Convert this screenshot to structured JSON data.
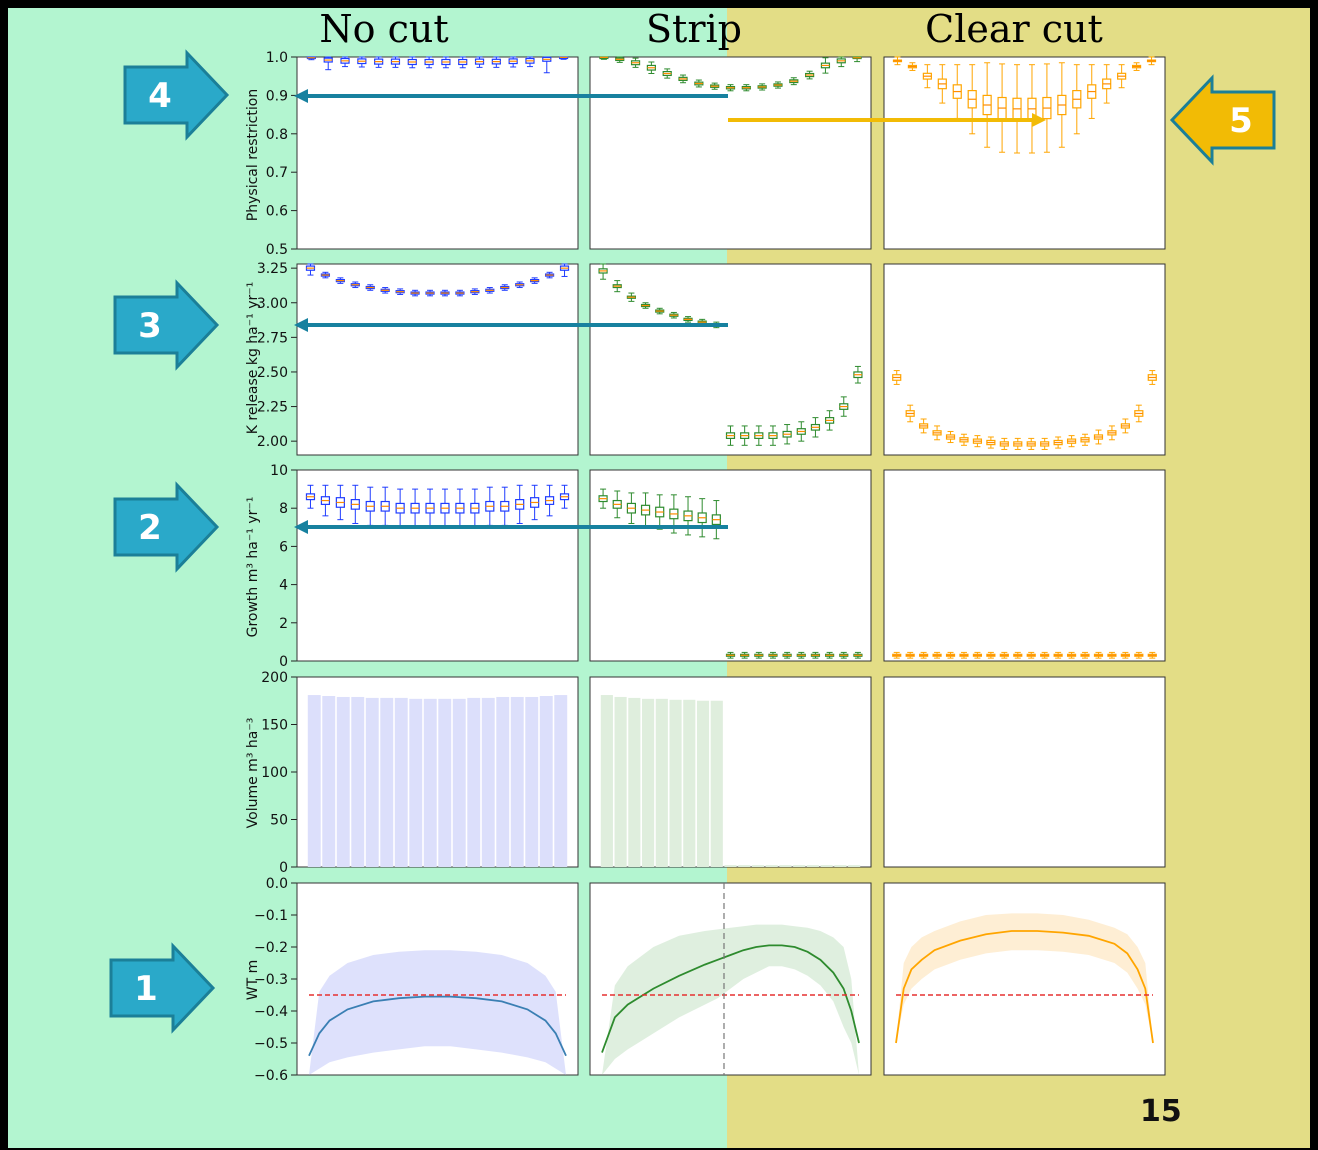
{
  "columns": [
    "No cut",
    "Strip",
    "Clear cut"
  ],
  "slide_number": "15",
  "arrows": [
    {
      "label": "1",
      "color": "#2aa9c9"
    },
    {
      "label": "2",
      "color": "#2aa9c9"
    },
    {
      "label": "3",
      "color": "#2aa9c9"
    },
    {
      "label": "4",
      "color": "#2aa9c9"
    },
    {
      "label": "5",
      "color": "#f2bb05"
    }
  ],
  "colors": {
    "nocut_bg": "#b3f5d0",
    "clearcut_bg": "#e3dd86",
    "nocut": "#1f3cff",
    "strip": "#2e8b2e",
    "clearcut": "#ffa500",
    "wt_line_nocut": "#3a7fb3",
    "threshold": "#e53030",
    "guide_arrow": "#17819f",
    "yellow_arrow": "#f2bb05",
    "median": "#ff8c00"
  },
  "chart_data": [
    {
      "type": "box",
      "row": "Physical restriction",
      "ylabel": "Physical restriction",
      "ylim": [
        0.5,
        1.0
      ],
      "yticks": [
        "0.5",
        "0.6",
        "0.7",
        "0.8",
        "0.9",
        "1.0"
      ],
      "series": [
        {
          "name": "No cut",
          "median": [
            0.998,
            0.992,
            0.99,
            0.989,
            0.988,
            0.988,
            0.987,
            0.987,
            0.987,
            0.987,
            0.988,
            0.988,
            0.989,
            0.99,
            0.994,
            0.999
          ],
          "iqr": [
            0.004,
            0.01,
            0.012,
            0.012,
            0.013,
            0.013,
            0.013,
            0.013,
            0.013,
            0.013,
            0.013,
            0.012,
            0.012,
            0.012,
            0.01,
            0.004
          ],
          "whisker": [
            0.005,
            0.025,
            0.015,
            0.015,
            0.015,
            0.015,
            0.015,
            0.015,
            0.015,
            0.015,
            0.015,
            0.015,
            0.015,
            0.015,
            0.035,
            0.005
          ]
        },
        {
          "name": "Strip",
          "median": [
            0.999,
            0.994,
            0.985,
            0.972,
            0.957,
            0.943,
            0.931,
            0.924,
            0.92,
            0.92,
            0.922,
            0.927,
            0.937,
            0.953,
            0.978,
            0.99,
            0.998
          ],
          "iqr": [
            0.004,
            0.006,
            0.01,
            0.012,
            0.01,
            0.008,
            0.007,
            0.006,
            0.006,
            0.006,
            0.006,
            0.006,
            0.007,
            0.008,
            0.012,
            0.01,
            0.004
          ],
          "whisker": [
            0.005,
            0.008,
            0.012,
            0.015,
            0.012,
            0.01,
            0.009,
            0.008,
            0.008,
            0.008,
            0.008,
            0.008,
            0.009,
            0.01,
            0.02,
            0.015,
            0.01
          ]
        },
        {
          "name": "Clear cut",
          "median": [
            0.99,
            0.975,
            0.95,
            0.93,
            0.91,
            0.89,
            0.875,
            0.867,
            0.865,
            0.865,
            0.867,
            0.875,
            0.89,
            0.91,
            0.93,
            0.95,
            0.975,
            0.99
          ],
          "iqr": [
            0.004,
            0.006,
            0.015,
            0.025,
            0.035,
            0.045,
            0.05,
            0.055,
            0.055,
            0.055,
            0.055,
            0.05,
            0.045,
            0.035,
            0.025,
            0.015,
            0.006,
            0.004
          ],
          "whisker": [
            0.01,
            0.01,
            0.03,
            0.05,
            0.07,
            0.09,
            0.11,
            0.115,
            0.115,
            0.115,
            0.115,
            0.11,
            0.09,
            0.07,
            0.05,
            0.03,
            0.01,
            0.01
          ]
        }
      ]
    },
    {
      "type": "box",
      "row": "K release",
      "ylabel": "K release kg ha⁻¹ yr⁻¹",
      "ylim": [
        1.9,
        3.28
      ],
      "yticks": [
        "2.00",
        "2.25",
        "2.50",
        "2.75",
        "3.00",
        "3.25"
      ],
      "series": [
        {
          "name": "No cut",
          "median": [
            3.25,
            3.2,
            3.16,
            3.13,
            3.11,
            3.09,
            3.08,
            3.07,
            3.07,
            3.07,
            3.07,
            3.08,
            3.09,
            3.11,
            3.13,
            3.16,
            3.2,
            3.25
          ],
          "iqr": [
            0.03,
            0.015,
            0.015,
            0.015,
            0.015,
            0.015,
            0.015,
            0.015,
            0.015,
            0.015,
            0.015,
            0.015,
            0.015,
            0.015,
            0.015,
            0.015,
            0.015,
            0.03
          ],
          "whisker": [
            0.05,
            0.02,
            0.02,
            0.02,
            0.02,
            0.02,
            0.02,
            0.02,
            0.02,
            0.02,
            0.02,
            0.02,
            0.02,
            0.02,
            0.02,
            0.02,
            0.02,
            0.06
          ]
        },
        {
          "name": "Strip",
          "median": [
            3.23,
            3.12,
            3.04,
            2.98,
            2.94,
            2.91,
            2.88,
            2.86,
            2.84,
            2.04,
            2.04,
            2.04,
            2.04,
            2.05,
            2.07,
            2.1,
            2.15,
            2.25,
            2.48
          ],
          "iqr": [
            0.03,
            0.02,
            0.015,
            0.015,
            0.015,
            0.015,
            0.015,
            0.015,
            0.015,
            0.04,
            0.04,
            0.04,
            0.04,
            0.04,
            0.04,
            0.04,
            0.04,
            0.04,
            0.04
          ],
          "whisker": [
            0.06,
            0.04,
            0.03,
            0.02,
            0.02,
            0.02,
            0.02,
            0.02,
            0.02,
            0.07,
            0.07,
            0.07,
            0.07,
            0.07,
            0.07,
            0.07,
            0.07,
            0.07,
            0.06
          ]
        },
        {
          "name": "Clear cut",
          "median": [
            2.46,
            2.2,
            2.11,
            2.06,
            2.03,
            2.01,
            2.0,
            1.99,
            1.98,
            1.98,
            1.98,
            1.98,
            1.99,
            2.0,
            2.01,
            2.03,
            2.06,
            2.11,
            2.2,
            2.46
          ],
          "iqr": [
            0.04,
            0.04,
            0.03,
            0.03,
            0.03,
            0.03,
            0.03,
            0.03,
            0.03,
            0.03,
            0.03,
            0.03,
            0.03,
            0.03,
            0.03,
            0.03,
            0.03,
            0.03,
            0.04,
            0.04
          ],
          "whisker": [
            0.05,
            0.06,
            0.05,
            0.05,
            0.04,
            0.04,
            0.04,
            0.04,
            0.04,
            0.04,
            0.04,
            0.04,
            0.04,
            0.04,
            0.04,
            0.05,
            0.05,
            0.05,
            0.06,
            0.05
          ]
        }
      ]
    },
    {
      "type": "box",
      "row": "Growth",
      "ylabel": "Growth m³ ha⁻¹ yr⁻¹",
      "ylim": [
        0,
        10
      ],
      "yticks": [
        "0",
        "2",
        "4",
        "6",
        "8",
        "10"
      ],
      "series": [
        {
          "name": "No cut",
          "median": [
            8.6,
            8.4,
            8.3,
            8.2,
            8.1,
            8.1,
            8.0,
            8.0,
            8.0,
            8.0,
            8.0,
            8.0,
            8.1,
            8.1,
            8.2,
            8.3,
            8.4,
            8.6
          ],
          "iqr": [
            0.3,
            0.4,
            0.5,
            0.5,
            0.5,
            0.5,
            0.5,
            0.5,
            0.5,
            0.5,
            0.5,
            0.5,
            0.5,
            0.5,
            0.5,
            0.5,
            0.4,
            0.3
          ],
          "whisker": [
            0.6,
            0.8,
            0.9,
            1.0,
            1.0,
            1.0,
            1.0,
            1.0,
            1.0,
            1.0,
            1.0,
            1.0,
            1.0,
            1.0,
            1.0,
            0.9,
            0.8,
            0.6
          ]
        },
        {
          "name": "Strip",
          "median": [
            8.5,
            8.2,
            8.0,
            7.9,
            7.8,
            7.7,
            7.6,
            7.5,
            7.4,
            0.3,
            0.3,
            0.3,
            0.3,
            0.3,
            0.3,
            0.3,
            0.3,
            0.3,
            0.3
          ],
          "iqr": [
            0.3,
            0.4,
            0.5,
            0.5,
            0.5,
            0.5,
            0.5,
            0.5,
            0.5,
            0.1,
            0.1,
            0.1,
            0.1,
            0.1,
            0.1,
            0.1,
            0.1,
            0.1,
            0.1
          ],
          "whisker": [
            0.5,
            0.7,
            0.8,
            0.9,
            0.9,
            1.0,
            1.0,
            1.0,
            1.0,
            0.15,
            0.15,
            0.15,
            0.15,
            0.15,
            0.15,
            0.15,
            0.15,
            0.15,
            0.15
          ]
        },
        {
          "name": "Clear cut",
          "median": [
            0.3,
            0.3,
            0.3,
            0.3,
            0.3,
            0.3,
            0.3,
            0.3,
            0.3,
            0.3,
            0.3,
            0.3,
            0.3,
            0.3,
            0.3,
            0.3,
            0.3,
            0.3,
            0.3,
            0.3
          ],
          "iqr": [
            0.1,
            0.1,
            0.1,
            0.1,
            0.1,
            0.1,
            0.1,
            0.1,
            0.1,
            0.1,
            0.1,
            0.1,
            0.1,
            0.1,
            0.1,
            0.1,
            0.1,
            0.1,
            0.1,
            0.1
          ],
          "whisker": [
            0.15,
            0.15,
            0.15,
            0.15,
            0.15,
            0.15,
            0.15,
            0.15,
            0.15,
            0.15,
            0.15,
            0.15,
            0.15,
            0.15,
            0.15,
            0.15,
            0.15,
            0.15,
            0.15,
            0.15
          ]
        }
      ]
    },
    {
      "type": "bar",
      "row": "Volume",
      "ylabel": "Volume m³ ha⁻³",
      "ylim": [
        0,
        200
      ],
      "yticks": [
        "0",
        "50",
        "100",
        "150",
        "200"
      ],
      "series": [
        {
          "name": "No cut",
          "values": [
            181,
            180,
            179,
            179,
            178,
            178,
            178,
            177,
            177,
            177,
            177,
            178,
            178,
            179,
            179,
            179,
            180,
            181
          ]
        },
        {
          "name": "Strip",
          "values": [
            181,
            179,
            178,
            177,
            177,
            176,
            176,
            175,
            175,
            2,
            2,
            2,
            2,
            2,
            2,
            2,
            2,
            2,
            2
          ]
        },
        {
          "name": "Clear cut",
          "values": []
        }
      ]
    },
    {
      "type": "line",
      "row": "WT",
      "ylabel": "WT m",
      "ylim": [
        -0.6,
        0.0
      ],
      "yticks": [
        "−0.6",
        "−0.5",
        "−0.4",
        "−0.3",
        "−0.2",
        "−0.1",
        "0.0"
      ],
      "threshold": -0.35,
      "series": [
        {
          "name": "No cut",
          "x": [
            0,
            0.04,
            0.08,
            0.15,
            0.25,
            0.35,
            0.45,
            0.55,
            0.65,
            0.75,
            0.85,
            0.92,
            0.96,
            1
          ],
          "y": [
            -0.54,
            -0.47,
            -0.43,
            -0.395,
            -0.37,
            -0.36,
            -0.355,
            -0.355,
            -0.36,
            -0.37,
            -0.395,
            -0.43,
            -0.47,
            -0.54
          ],
          "upper": [
            -0.6,
            -0.34,
            -0.29,
            -0.25,
            -0.225,
            -0.215,
            -0.21,
            -0.21,
            -0.215,
            -0.225,
            -0.25,
            -0.29,
            -0.34,
            -0.6
          ],
          "lower": [
            -0.6,
            -0.58,
            -0.56,
            -0.545,
            -0.53,
            -0.52,
            -0.51,
            -0.51,
            -0.52,
            -0.53,
            -0.545,
            -0.56,
            -0.58,
            -0.6
          ]
        },
        {
          "name": "Strip",
          "x": [
            0,
            0.05,
            0.1,
            0.2,
            0.3,
            0.4,
            0.45,
            0.5,
            0.55,
            0.6,
            0.65,
            0.7,
            0.75,
            0.8,
            0.85,
            0.9,
            0.94,
            0.97,
            1
          ],
          "y": [
            -0.53,
            -0.42,
            -0.38,
            -0.33,
            -0.29,
            -0.255,
            -0.24,
            -0.225,
            -0.21,
            -0.2,
            -0.195,
            -0.195,
            -0.2,
            -0.215,
            -0.24,
            -0.28,
            -0.33,
            -0.4,
            -0.5
          ],
          "upper": [
            -0.6,
            -0.32,
            -0.26,
            -0.2,
            -0.165,
            -0.15,
            -0.145,
            -0.14,
            -0.135,
            -0.13,
            -0.13,
            -0.13,
            -0.135,
            -0.14,
            -0.15,
            -0.17,
            -0.2,
            -0.3,
            -0.6
          ],
          "lower": [
            -0.6,
            -0.55,
            -0.52,
            -0.47,
            -0.42,
            -0.38,
            -0.36,
            -0.33,
            -0.3,
            -0.28,
            -0.26,
            -0.26,
            -0.27,
            -0.29,
            -0.32,
            -0.37,
            -0.45,
            -0.5,
            -0.6
          ]
        },
        {
          "name": "Clear cut",
          "x": [
            0,
            0.03,
            0.06,
            0.1,
            0.15,
            0.25,
            0.35,
            0.45,
            0.55,
            0.65,
            0.75,
            0.85,
            0.9,
            0.94,
            0.97,
            1
          ],
          "y": [
            -0.5,
            -0.33,
            -0.27,
            -0.24,
            -0.21,
            -0.18,
            -0.16,
            -0.15,
            -0.15,
            -0.155,
            -0.165,
            -0.19,
            -0.22,
            -0.27,
            -0.33,
            -0.5
          ],
          "upper": [
            -0.5,
            -0.25,
            -0.2,
            -0.17,
            -0.15,
            -0.12,
            -0.1,
            -0.095,
            -0.095,
            -0.1,
            -0.115,
            -0.14,
            -0.16,
            -0.2,
            -0.25,
            -0.5
          ],
          "lower": [
            -0.5,
            -0.38,
            -0.33,
            -0.3,
            -0.27,
            -0.24,
            -0.22,
            -0.21,
            -0.21,
            -0.215,
            -0.225,
            -0.25,
            -0.28,
            -0.33,
            -0.38,
            -0.5
          ]
        }
      ]
    }
  ]
}
